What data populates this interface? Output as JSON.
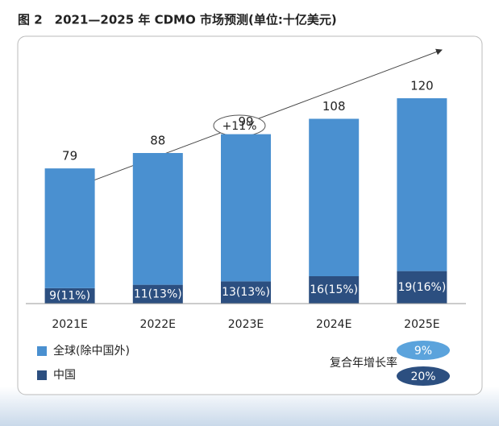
{
  "chart_data": {
    "type": "stacked_bar",
    "title": "图 2　2021—2025 年 CDMO 市场预测(单位:十亿美元)",
    "categories": [
      "2021E",
      "2022E",
      "2023E",
      "2024E",
      "2025E"
    ],
    "series": [
      {
        "name": "全球(除中国外)",
        "color": "#4a90d0",
        "values": [
          70,
          77,
          86,
          92,
          101
        ]
      },
      {
        "name": "中国",
        "color": "#2c4f80",
        "values": [
          9,
          11,
          13,
          16,
          19
        ],
        "value_labels": [
          "9(11%)",
          "11(13%)",
          "13(13%)",
          "16(15%)",
          "19(16%)"
        ]
      }
    ],
    "totals": [
      79,
      88,
      99,
      108,
      120
    ],
    "annotation": "+11%",
    "cagr": {
      "label": "复合年增长率",
      "values": [
        9,
        20
      ],
      "value_labels": [
        "9%",
        "20%"
      ]
    }
  }
}
